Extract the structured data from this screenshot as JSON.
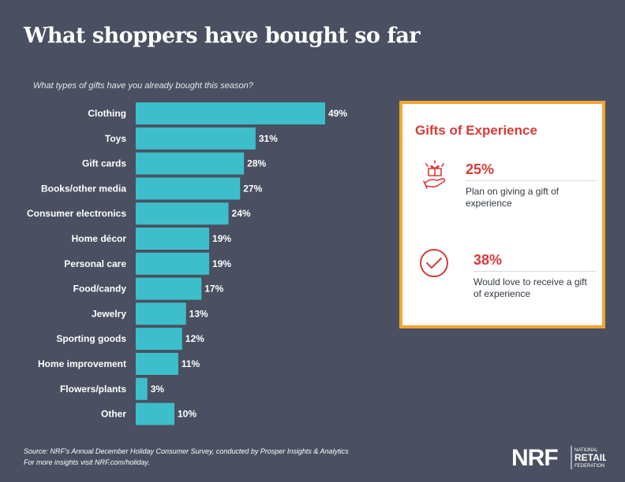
{
  "title": "What shoppers have bought so far",
  "question": "What types of gifts have you already bought this season?",
  "chart_data": {
    "type": "bar",
    "orientation": "horizontal",
    "categories": [
      "Clothing",
      "Toys",
      "Gift cards",
      "Books/other media",
      "Consumer electronics",
      "Home décor",
      "Personal care",
      "Food/candy",
      "Jewelry",
      "Sporting goods",
      "Home improvement",
      "Flowers/plants",
      "Other"
    ],
    "values": [
      49,
      31,
      28,
      27,
      24,
      19,
      19,
      17,
      13,
      12,
      11,
      3,
      10
    ],
    "value_labels": [
      "49%",
      "31%",
      "28%",
      "27%",
      "24%",
      "19%",
      "19%",
      "17%",
      "13%",
      "12%",
      "11%",
      "3%",
      "10%"
    ],
    "xlim": [
      0,
      49
    ],
    "grid": false,
    "legend": "none",
    "bar_color": "#3dbfcb"
  },
  "panel": {
    "title": "Gifts of Experience",
    "stats": [
      {
        "value": "25%",
        "description": "Plan on giving a gift of experience",
        "icon": "gift-hand-icon"
      },
      {
        "value": "38%",
        "description": "Would love to receive a gift of experience",
        "icon": "check-circle-icon"
      }
    ],
    "accent_color": "#d83a3a",
    "border_color": "#f2a533"
  },
  "source": {
    "line1": "Source: NRF's Annual December Holiday Consumer Survey, conducted by Prosper Insights & Analytics",
    "line2": "For more insights visit NRF.com/holiday."
  },
  "logo": {
    "mark": "NRF",
    "small_text": "NATIONAL",
    "large_text1": "RETAIL",
    "small_text2": "FEDERATION"
  }
}
